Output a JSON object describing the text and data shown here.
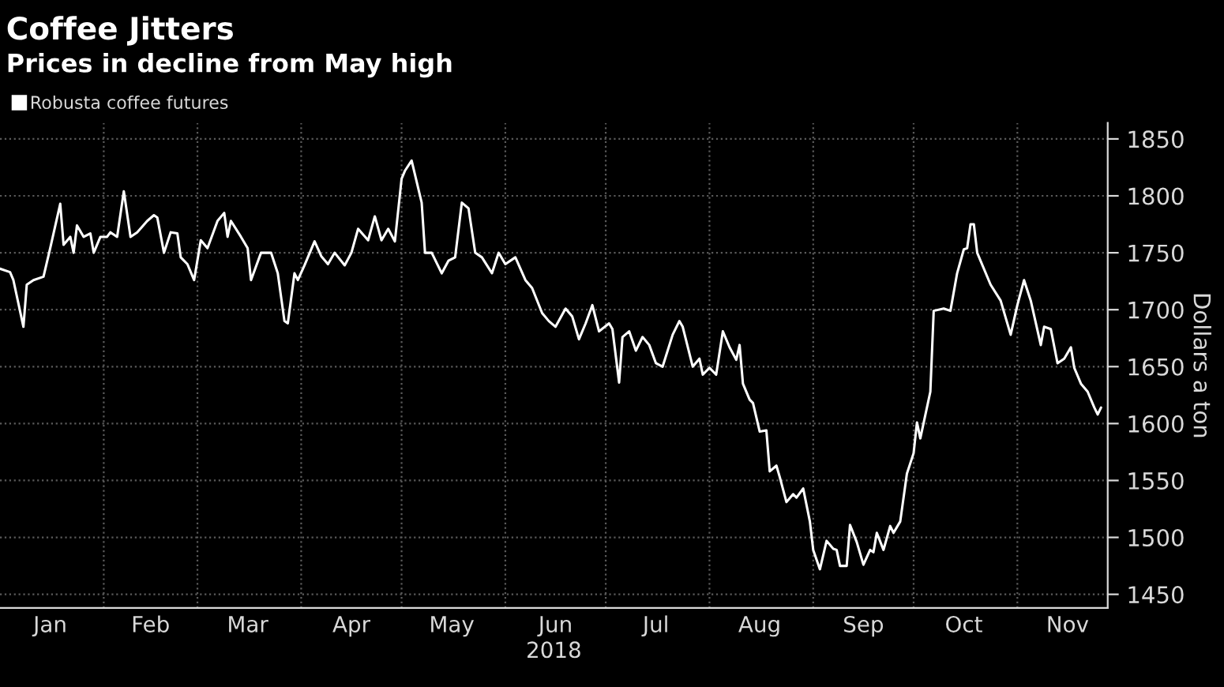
{
  "chart_data": {
    "type": "line",
    "title": "Coffee Jitters",
    "subtitle": "Prices in decline from May high",
    "xlabel": "2018",
    "ylabel": "Dollars a ton",
    "legend": "top left",
    "grid": true,
    "marker": "none",
    "line_style": "solid",
    "xlim": [
      "2018-01-01",
      "2018-11-28"
    ],
    "ylim": [
      1438,
      1864
    ],
    "yticks": [
      1450,
      1500,
      1550,
      1600,
      1650,
      1700,
      1750,
      1800,
      1850
    ],
    "xticks": [
      {
        "value": "2018-01-16",
        "label": "Jan"
      },
      {
        "value": "2018-02-01",
        "label": null
      },
      {
        "value": "2018-02-15",
        "label": "Feb"
      },
      {
        "value": "2018-03-01",
        "label": null
      },
      {
        "value": "2018-03-16",
        "label": "Mar"
      },
      {
        "value": "2018-04-01",
        "label": null
      },
      {
        "value": "2018-04-16",
        "label": "Apr"
      },
      {
        "value": "2018-05-01",
        "label": null
      },
      {
        "value": "2018-05-16",
        "label": "May"
      },
      {
        "value": "2018-06-01",
        "label": null
      },
      {
        "value": "2018-06-16",
        "label": "Jun"
      },
      {
        "value": "2018-07-01",
        "label": null
      },
      {
        "value": "2018-07-16",
        "label": "Jul"
      },
      {
        "value": "2018-08-01",
        "label": null
      },
      {
        "value": "2018-08-16",
        "label": "Aug"
      },
      {
        "value": "2018-09-01",
        "label": null
      },
      {
        "value": "2018-09-16",
        "label": "Sep"
      },
      {
        "value": "2018-10-01",
        "label": null
      },
      {
        "value": "2018-10-16",
        "label": "Oct"
      },
      {
        "value": "2018-11-01",
        "label": null
      },
      {
        "value": "2018-11-16",
        "label": "Nov"
      }
    ],
    "series": [
      {
        "name": "Robusta coffee futures",
        "color": "#ffffff",
        "x": [
          "2018-01-01",
          "2018-01-04",
          "2018-01-05",
          "2018-01-08",
          "2018-01-09",
          "2018-01-11",
          "2018-01-14",
          "2018-01-16",
          "2018-01-19",
          "2018-01-20",
          "2018-01-22",
          "2018-01-23",
          "2018-01-24",
          "2018-01-26",
          "2018-01-28",
          "2018-01-29",
          "2018-01-31",
          "2018-02-02",
          "2018-02-03",
          "2018-02-05",
          "2018-02-07",
          "2018-02-09",
          "2018-02-11",
          "2018-02-14",
          "2018-02-16",
          "2018-02-17",
          "2018-02-19",
          "2018-02-21",
          "2018-02-23",
          "2018-02-24",
          "2018-02-26",
          "2018-02-28",
          "2018-03-02",
          "2018-03-04",
          "2018-03-07",
          "2018-03-09",
          "2018-03-10",
          "2018-03-11",
          "2018-03-14",
          "2018-03-16",
          "2018-03-17",
          "2018-03-20",
          "2018-03-23",
          "2018-03-25",
          "2018-03-27",
          "2018-03-28",
          "2018-03-30",
          "2018-03-31",
          "2018-04-02",
          "2018-04-05",
          "2018-04-07",
          "2018-04-09",
          "2018-04-11",
          "2018-04-14",
          "2018-04-16",
          "2018-04-18",
          "2018-04-21",
          "2018-04-23",
          "2018-04-25",
          "2018-04-27",
          "2018-04-29",
          "2018-05-01",
          "2018-05-02",
          "2018-05-04",
          "2018-05-07",
          "2018-05-08",
          "2018-05-10",
          "2018-05-13",
          "2018-05-15",
          "2018-05-17",
          "2018-05-19",
          "2018-05-21",
          "2018-05-23",
          "2018-05-25",
          "2018-05-28",
          "2018-05-30",
          "2018-06-01",
          "2018-06-04",
          "2018-06-07",
          "2018-06-09",
          "2018-06-12",
          "2018-06-14",
          "2018-06-16",
          "2018-06-19",
          "2018-06-21",
          "2018-06-23",
          "2018-06-25",
          "2018-06-27",
          "2018-06-29",
          "2018-07-02",
          "2018-07-03",
          "2018-07-05",
          "2018-07-06",
          "2018-07-08",
          "2018-07-10",
          "2018-07-12",
          "2018-07-14",
          "2018-07-16",
          "2018-07-18",
          "2018-07-21",
          "2018-07-23",
          "2018-07-24",
          "2018-07-27",
          "2018-07-29",
          "2018-07-30",
          "2018-08-01",
          "2018-08-03",
          "2018-08-05",
          "2018-08-07",
          "2018-08-09",
          "2018-08-10",
          "2018-08-11",
          "2018-08-13",
          "2018-08-14",
          "2018-08-16",
          "2018-08-18",
          "2018-08-19",
          "2018-08-21",
          "2018-08-22",
          "2018-08-24",
          "2018-08-26",
          "2018-08-27",
          "2018-08-29",
          "2018-08-31",
          "2018-09-01",
          "2018-09-03",
          "2018-09-05",
          "2018-09-07",
          "2018-09-08",
          "2018-09-09",
          "2018-09-11",
          "2018-09-12",
          "2018-09-14",
          "2018-09-16",
          "2018-09-18",
          "2018-09-19",
          "2018-09-20",
          "2018-09-22",
          "2018-09-24",
          "2018-09-25",
          "2018-09-27",
          "2018-09-29",
          "2018-10-01",
          "2018-10-02",
          "2018-10-03",
          "2018-10-06",
          "2018-10-07",
          "2018-10-10",
          "2018-10-12",
          "2018-10-14",
          "2018-10-16",
          "2018-10-17",
          "2018-10-18",
          "2018-10-19",
          "2018-10-20",
          "2018-10-24",
          "2018-10-27",
          "2018-10-30",
          "2018-11-01",
          "2018-11-03",
          "2018-11-05",
          "2018-11-08",
          "2018-11-09",
          "2018-11-11",
          "2018-11-13",
          "2018-11-15",
          "2018-11-17",
          "2018-11-18",
          "2018-11-20",
          "2018-11-22",
          "2018-11-24",
          "2018-11-25",
          "2018-11-26"
        ],
        "values": [
          1736,
          1733,
          1726,
          1685,
          1722,
          1726,
          1729,
          1754,
          1793,
          1757,
          1764,
          1750,
          1774,
          1764,
          1767,
          1750,
          1764,
          1764,
          1768,
          1764,
          1804,
          1764,
          1768,
          1778,
          1783,
          1781,
          1750,
          1768,
          1767,
          1746,
          1740,
          1726,
          1761,
          1754,
          1778,
          1785,
          1764,
          1778,
          1764,
          1754,
          1726,
          1750,
          1750,
          1732,
          1690,
          1688,
          1732,
          1726,
          1739,
          1760,
          1747,
          1740,
          1750,
          1739,
          1750,
          1771,
          1761,
          1782,
          1761,
          1771,
          1760,
          1815,
          1822,
          1831,
          1794,
          1750,
          1750,
          1732,
          1743,
          1746,
          1794,
          1789,
          1750,
          1746,
          1732,
          1750,
          1740,
          1746,
          1726,
          1719,
          1697,
          1690,
          1685,
          1701,
          1694,
          1674,
          1688,
          1704,
          1681,
          1688,
          1683,
          1636,
          1676,
          1681,
          1664,
          1676,
          1669,
          1653,
          1650,
          1678,
          1690,
          1685,
          1650,
          1657,
          1643,
          1649,
          1643,
          1681,
          1667,
          1656,
          1669,
          1635,
          1621,
          1618,
          1593,
          1594,
          1558,
          1563,
          1553,
          1531,
          1538,
          1535,
          1543,
          1514,
          1489,
          1472,
          1497,
          1490,
          1489,
          1475,
          1475,
          1511,
          1496,
          1476,
          1489,
          1487,
          1504,
          1489,
          1510,
          1504,
          1514,
          1556,
          1574,
          1601,
          1587,
          1628,
          1699,
          1701,
          1699,
          1732,
          1753,
          1754,
          1775,
          1775,
          1750,
          1722,
          1708,
          1678,
          1704,
          1726,
          1708,
          1669,
          1685,
          1683,
          1653,
          1657,
          1667,
          1649,
          1635,
          1628,
          1614,
          1608,
          1614
        ]
      }
    ]
  }
}
